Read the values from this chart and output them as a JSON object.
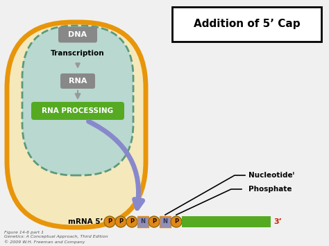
{
  "bg_color": "#f0f0f0",
  "cell_outer_color": "#e8950a",
  "cell_outer_fill": "#f5e8bb",
  "cell_inner_color": "#b8d8d0",
  "nucleus_dashed_color": "#5a9a7a",
  "dna_box_color": "#888888",
  "rna_box_color": "#888888",
  "rna_processing_color": "#55aa22",
  "title_box": "Addition of 5’ Cap",
  "footer1": "Figure 14-6 part 1",
  "footer2": "Genetics: A Conceptual Approach, Third Edition",
  "footer3": "© 2009 W.H. Freeman and Company",
  "p_color": "#e08818",
  "n_color": "#9090bb",
  "green_bar_color": "#55aa22",
  "arrow_color": "#8888cc",
  "gray_arrow_color": "#999999"
}
